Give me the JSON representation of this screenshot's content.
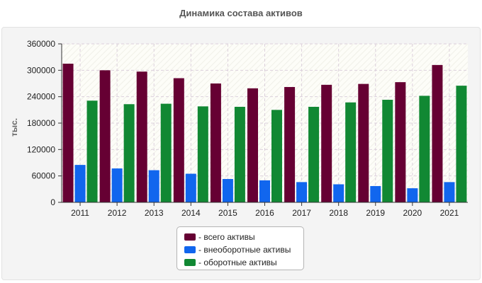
{
  "chart_data": {
    "type": "bar",
    "title": "Динамика состава активов",
    "ylabel": "тыс.",
    "xlabel": "",
    "ylim": [
      0,
      360000
    ],
    "yticks": [
      "0",
      "60000",
      "120000",
      "180000",
      "240000",
      "300000",
      "360000"
    ],
    "grid": true,
    "legend_position": "bottom",
    "categories": [
      "2011",
      "2012",
      "2013",
      "2014",
      "2015",
      "2016",
      "2017",
      "2018",
      "2019",
      "2020",
      "2021"
    ],
    "series": [
      {
        "name": "- всего активы",
        "color": "#660033",
        "values": [
          315000,
          300000,
          297000,
          282000,
          270000,
          259000,
          262000,
          267000,
          269000,
          273000,
          312000
        ]
      },
      {
        "name": "- внеоборотные активы",
        "color": "#1166ee",
        "values": [
          85000,
          77000,
          73000,
          65000,
          53000,
          50000,
          46000,
          41000,
          37000,
          32000,
          46000
        ]
      },
      {
        "name": "- оборотные активы",
        "color": "#118833",
        "values": [
          231000,
          223000,
          224000,
          218000,
          217000,
          210000,
          217000,
          227000,
          233000,
          242000,
          265000
        ]
      }
    ]
  }
}
